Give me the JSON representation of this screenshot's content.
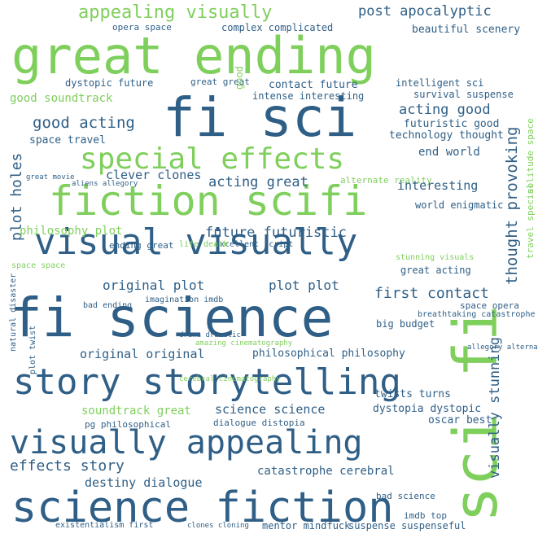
{
  "word_cloud": {
    "words": [
      {
        "text": "great ending",
        "color": "green"
      },
      {
        "text": "fi sci",
        "color": "blue"
      },
      {
        "text": "sci fi",
        "color": "green"
      },
      {
        "text": "fiction scifi",
        "color": "green"
      },
      {
        "text": "special effects",
        "color": "green"
      },
      {
        "text": "visual visually",
        "color": "blue"
      },
      {
        "text": "fi science",
        "color": "blue"
      },
      {
        "text": "story storytelling",
        "color": "blue"
      },
      {
        "text": "visually appealing",
        "color": "blue"
      },
      {
        "text": "science fiction",
        "color": "blue"
      },
      {
        "text": "appealing visually",
        "color": "green"
      },
      {
        "text": "post apocalyptic",
        "color": "blue"
      },
      {
        "text": "opera space",
        "color": "blue"
      },
      {
        "text": "complex complicated",
        "color": "blue"
      },
      {
        "text": "beautiful scenery",
        "color": "blue"
      },
      {
        "text": "dystopic future",
        "color": "blue"
      },
      {
        "text": "contact future",
        "color": "blue"
      },
      {
        "text": "intelligent sci",
        "color": "blue"
      },
      {
        "text": "intense interesting",
        "color": "blue"
      },
      {
        "text": "survival suspense",
        "color": "blue"
      },
      {
        "text": "good soundtrack",
        "color": "green"
      },
      {
        "text": "good acting",
        "color": "blue"
      },
      {
        "text": "acting good",
        "color": "blue"
      },
      {
        "text": "futuristic good",
        "color": "blue"
      },
      {
        "text": "technology thought",
        "color": "blue"
      },
      {
        "text": "thought provoking",
        "color": "blue"
      },
      {
        "text": "space travel",
        "color": "blue"
      },
      {
        "text": "end world",
        "color": "blue"
      },
      {
        "text": "clever clones",
        "color": "blue"
      },
      {
        "text": "acting great",
        "color": "blue"
      },
      {
        "text": "alternate reality",
        "color": "green"
      },
      {
        "text": "interesting",
        "color": "blue"
      },
      {
        "text": "plot holes",
        "color": "blue"
      },
      {
        "text": "world enigmatic",
        "color": "blue"
      },
      {
        "text": "philosophy plot",
        "color": "green"
      },
      {
        "text": "future futuristic",
        "color": "blue"
      },
      {
        "text": "ending great",
        "color": "blue"
      },
      {
        "text": "excellent script",
        "color": "blue"
      },
      {
        "text": "life death",
        "color": "green"
      },
      {
        "text": "travel special",
        "color": "green"
      },
      {
        "text": "solitude space",
        "color": "green"
      },
      {
        "text": "stunning visuals",
        "color": "green"
      },
      {
        "text": "original plot",
        "color": "blue"
      },
      {
        "text": "plot plot",
        "color": "blue"
      },
      {
        "text": "first contact",
        "color": "blue"
      },
      {
        "text": "great acting",
        "color": "blue"
      },
      {
        "text": "space opera",
        "color": "blue"
      },
      {
        "text": "space space",
        "color": "green"
      },
      {
        "text": "bad ending",
        "color": "blue"
      },
      {
        "text": "imagination imdb",
        "color": "blue"
      },
      {
        "text": "breathtaking catastrophe",
        "color": "blue"
      },
      {
        "text": "big budget",
        "color": "blue"
      },
      {
        "text": "natural disaster",
        "color": "blue"
      },
      {
        "text": "visually stunning",
        "color": "blue"
      },
      {
        "text": "plot twist",
        "color": "blue"
      },
      {
        "text": "original original",
        "color": "blue"
      },
      {
        "text": "philosophical philosophy",
        "color": "blue"
      },
      {
        "text": "amazing cinematography",
        "color": "green"
      },
      {
        "text": "drama dramatic",
        "color": "blue"
      },
      {
        "text": "allegory alternate",
        "color": "blue"
      },
      {
        "text": "soundtrack great",
        "color": "green"
      },
      {
        "text": "science science",
        "color": "blue"
      },
      {
        "text": "dystopia dystopic",
        "color": "blue"
      },
      {
        "text": "twists turns",
        "color": "blue"
      },
      {
        "text": "pg philosophical",
        "color": "blue"
      },
      {
        "text": "dialogue distopia",
        "color": "blue"
      },
      {
        "text": "oscar best",
        "color": "blue"
      },
      {
        "text": "effects story",
        "color": "blue"
      },
      {
        "text": "catastrophe cerebral",
        "color": "blue"
      },
      {
        "text": "destiny dialogue",
        "color": "blue"
      },
      {
        "text": "bad science",
        "color": "blue"
      },
      {
        "text": "imdb top",
        "color": "blue"
      },
      {
        "text": "existentialism first",
        "color": "blue"
      },
      {
        "text": "clones cloning",
        "color": "blue"
      },
      {
        "text": "mentor mindfuck",
        "color": "blue"
      },
      {
        "text": "suspense suspenseful",
        "color": "blue"
      },
      {
        "text": "great great",
        "color": "blue"
      },
      {
        "text": "good",
        "color": "green"
      },
      {
        "text": "great movie",
        "color": "blue"
      },
      {
        "text": "aliens allegory",
        "color": "blue"
      },
      {
        "text": "cerebral cinematography",
        "color": "green"
      }
    ]
  }
}
